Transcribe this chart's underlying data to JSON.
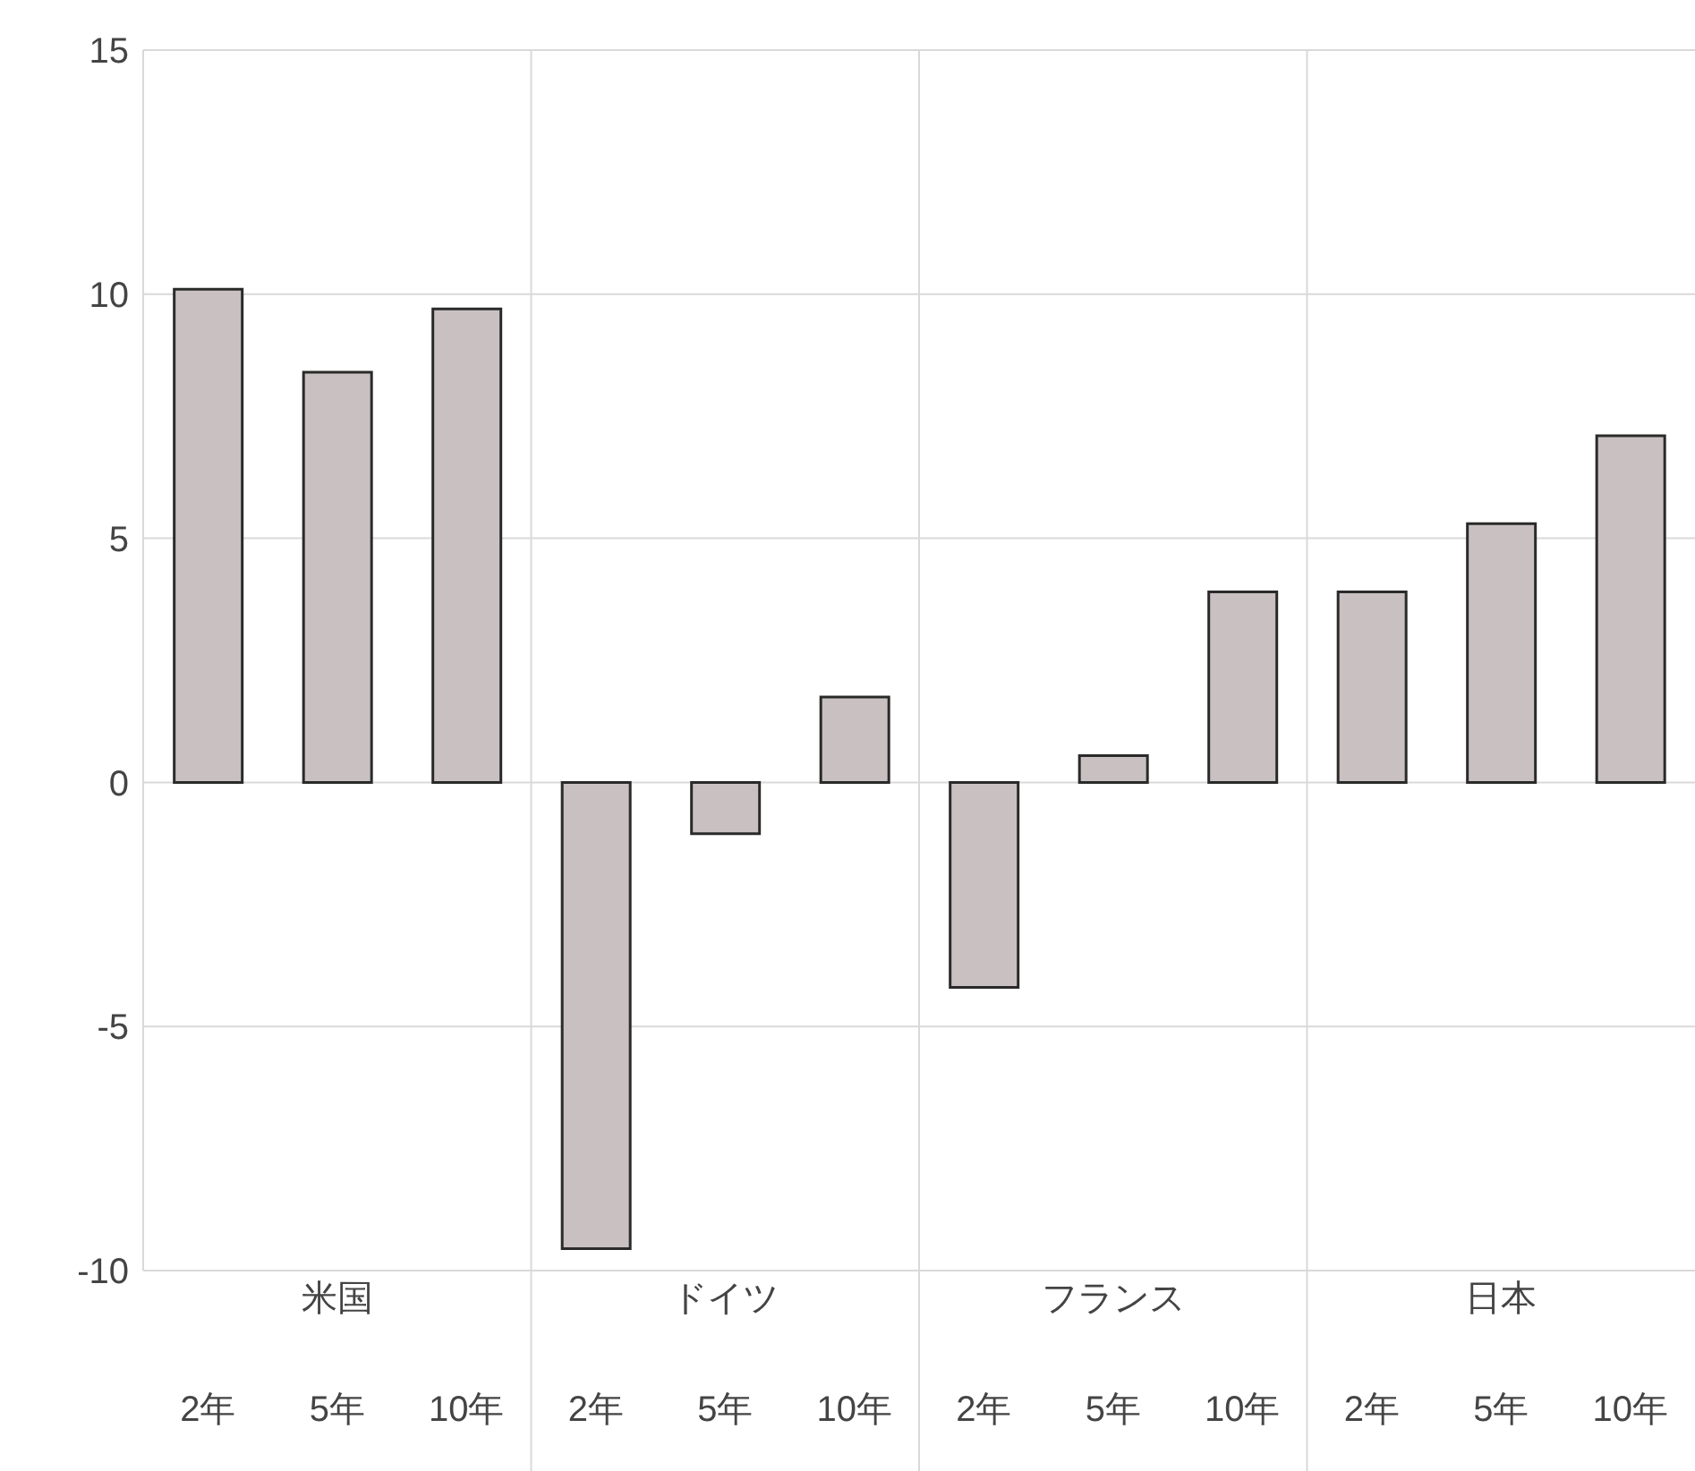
{
  "chart_data": {
    "type": "bar",
    "categories": [
      "2年",
      "5年",
      "10年",
      "2年",
      "5年",
      "10年",
      "2年",
      "5年",
      "10年",
      "2年",
      "5年",
      "10年"
    ],
    "values": [
      10.1,
      8.4,
      9.7,
      -9.55,
      -1.05,
      1.75,
      -4.2,
      0.55,
      3.9,
      3.9,
      5.3,
      7.1
    ],
    "color": "#c9c1c1",
    "ylim": [
      -10,
      15
    ],
    "yticks": [
      -10,
      -5,
      0,
      5,
      10,
      15
    ],
    "grid": true,
    "annotations": [
      "米国",
      "ドイツ",
      "フランス",
      "日本"
    ]
  }
}
